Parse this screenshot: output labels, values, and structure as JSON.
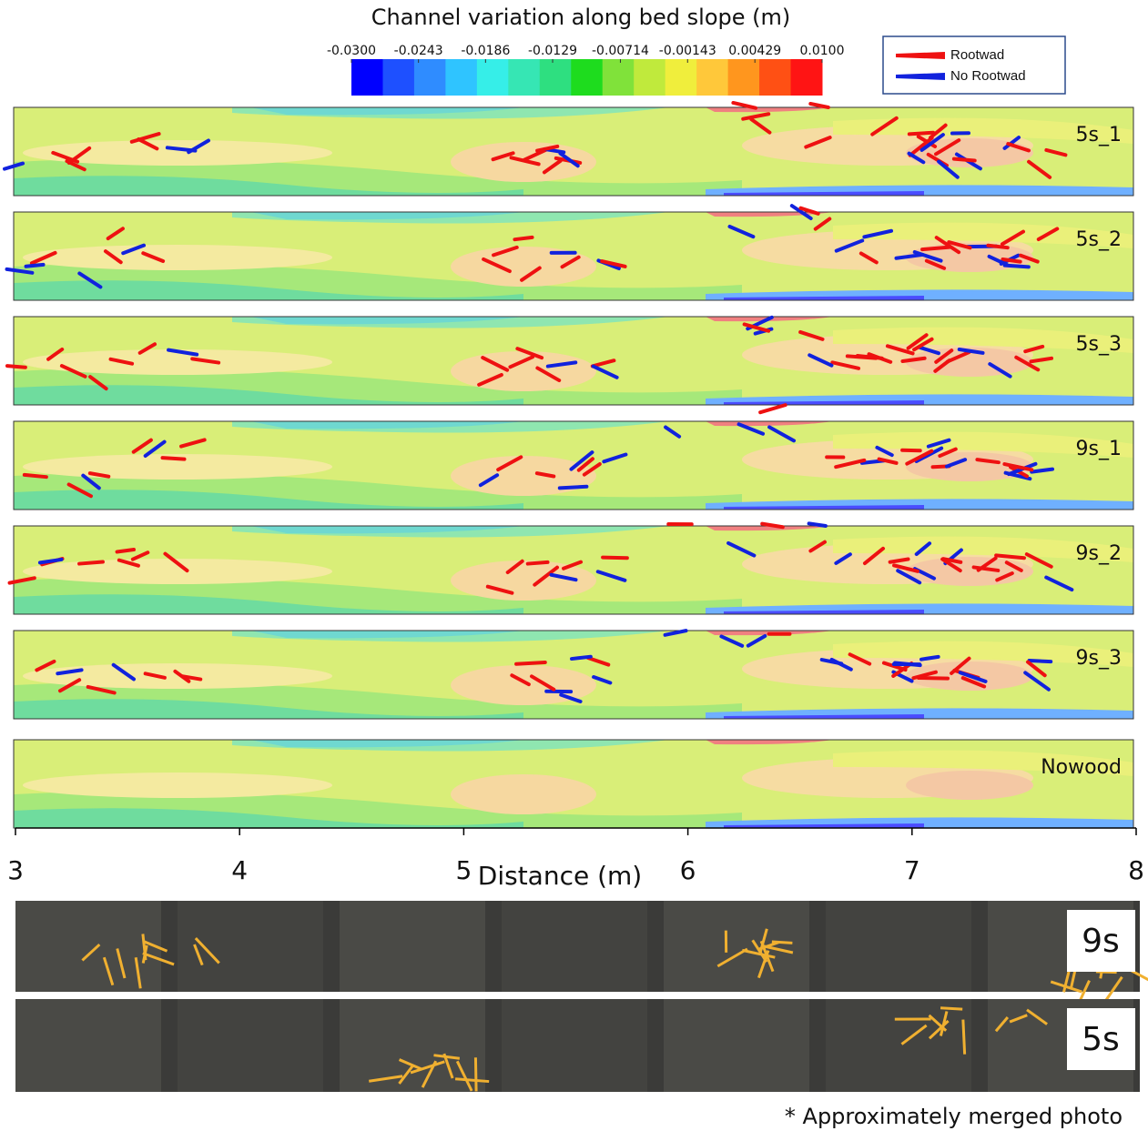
{
  "figure": {
    "colorbar": {
      "title": "Channel variation along bed slope (m)",
      "lim": [
        -0.03,
        0.01
      ],
      "ticks": [
        {
          "value": -0.03,
          "label": "-0.0300"
        },
        {
          "value": -0.0243,
          "label": "-0.0243"
        },
        {
          "value": -0.0186,
          "label": "-0.0186"
        },
        {
          "value": -0.0129,
          "label": "-0.0129"
        },
        {
          "value": -0.00714,
          "label": "-0.00714"
        },
        {
          "value": -0.00143,
          "label": "-0.00143"
        },
        {
          "value": 0.00429,
          "label": "0.00429"
        },
        {
          "value": 0.01,
          "label": "0.0100"
        }
      ],
      "colors": [
        "#0000ff",
        "#1e50ff",
        "#2f8cff",
        "#2fc4ff",
        "#36eee8",
        "#36e6b4",
        "#2edf80",
        "#1edc1e",
        "#80e23a",
        "#c0ea3c",
        "#f0ee3c",
        "#ffc83a",
        "#ff961e",
        "#ff5014",
        "#ff1414"
      ]
    },
    "legend": [
      {
        "name": "Rootwad",
        "color": "#ee1111"
      },
      {
        "name": "No Rootwad",
        "color": "#1122dd"
      }
    ],
    "panels": [
      "5s_1",
      "5s_2",
      "5s_3",
      "9s_1",
      "9s_2",
      "9s_3",
      "Nowood"
    ],
    "xaxis": {
      "label": "Distance (m)",
      "xlim": [
        3,
        8
      ],
      "xticks": [
        3,
        4,
        5,
        6,
        7,
        8
      ]
    },
    "photos": [
      "9s",
      "5s"
    ],
    "footnote": "* Approximately merged photo"
  }
}
